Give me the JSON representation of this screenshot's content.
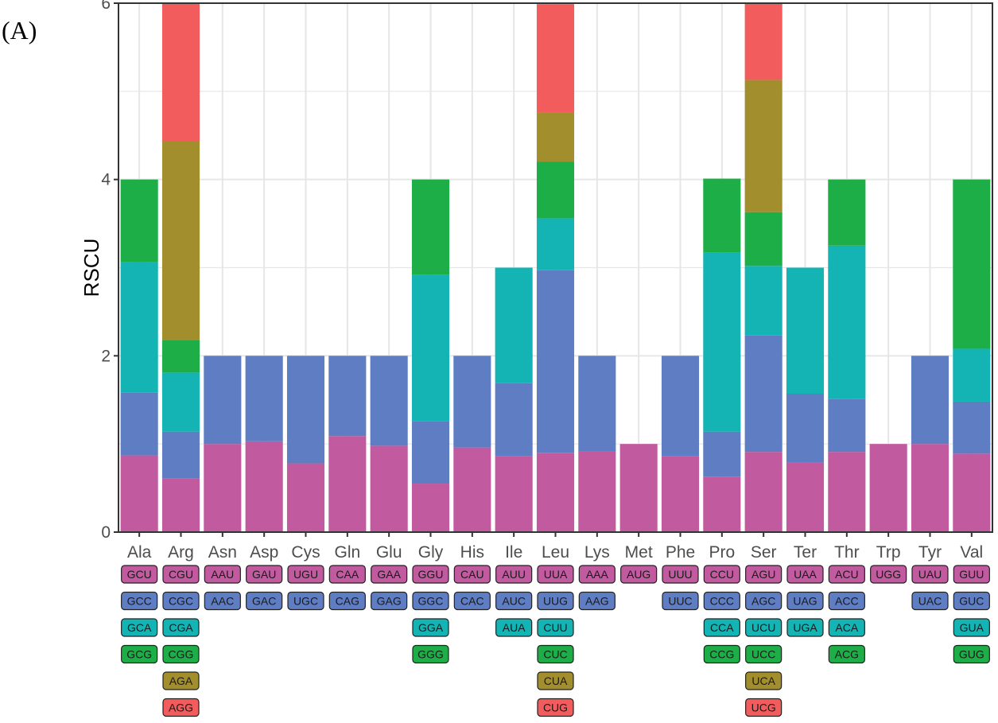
{
  "figure_label": "(A)",
  "colors": {
    "level1": "#C25AA0",
    "level2": "#5F7DC3",
    "level3": "#14B4B4",
    "level4": "#1EAE48",
    "level5": "#A38E2E",
    "level6": "#F25C5C",
    "panel_border": "#333333",
    "grid": "#e6e6e6"
  },
  "chart_data": {
    "type": "bar",
    "stacked": true,
    "ylabel": "RSCU",
    "xlabel": "",
    "ylim": [
      0,
      6
    ],
    "yticks": [
      0,
      2,
      4,
      6
    ],
    "grid": true,
    "categories": [
      "Ala",
      "Arg",
      "Asn",
      "Asp",
      "Cys",
      "Gln",
      "Glu",
      "Gly",
      "His",
      "Ile",
      "Leu",
      "Lys",
      "Met",
      "Phe",
      "Pro",
      "Ser",
      "Ter",
      "Thr",
      "Trp",
      "Tyr",
      "Val"
    ],
    "bars": [
      {
        "aa": "Ala",
        "codons": [
          {
            "codon": "GCU",
            "rscu": 0.87
          },
          {
            "codon": "GCC",
            "rscu": 0.71
          },
          {
            "codon": "GCA",
            "rscu": 1.48
          },
          {
            "codon": "GCG",
            "rscu": 0.94
          }
        ]
      },
      {
        "aa": "Arg",
        "codons": [
          {
            "codon": "CGU",
            "rscu": 0.61
          },
          {
            "codon": "CGC",
            "rscu": 0.53
          },
          {
            "codon": "CGA",
            "rscu": 0.67
          },
          {
            "codon": "CGG",
            "rscu": 0.37
          },
          {
            "codon": "AGA",
            "rscu": 2.25
          },
          {
            "codon": "AGG",
            "rscu": 1.57
          }
        ]
      },
      {
        "aa": "Asn",
        "codons": [
          {
            "codon": "AAU",
            "rscu": 1.0
          },
          {
            "codon": "AAC",
            "rscu": 1.0
          }
        ]
      },
      {
        "aa": "Asp",
        "codons": [
          {
            "codon": "GAU",
            "rscu": 1.03
          },
          {
            "codon": "GAC",
            "rscu": 0.97
          }
        ]
      },
      {
        "aa": "Cys",
        "codons": [
          {
            "codon": "UGU",
            "rscu": 0.78
          },
          {
            "codon": "UGC",
            "rscu": 1.22
          }
        ]
      },
      {
        "aa": "Gln",
        "codons": [
          {
            "codon": "CAA",
            "rscu": 1.09
          },
          {
            "codon": "CAG",
            "rscu": 0.91
          }
        ]
      },
      {
        "aa": "Glu",
        "codons": [
          {
            "codon": "GAA",
            "rscu": 0.98
          },
          {
            "codon": "GAG",
            "rscu": 1.02
          }
        ]
      },
      {
        "aa": "Gly",
        "codons": [
          {
            "codon": "GGU",
            "rscu": 0.55
          },
          {
            "codon": "GGC",
            "rscu": 0.71
          },
          {
            "codon": "GGA",
            "rscu": 1.66
          },
          {
            "codon": "GGG",
            "rscu": 1.08
          }
        ]
      },
      {
        "aa": "His",
        "codons": [
          {
            "codon": "CAU",
            "rscu": 0.96
          },
          {
            "codon": "CAC",
            "rscu": 1.04
          }
        ]
      },
      {
        "aa": "Ile",
        "codons": [
          {
            "codon": "AUU",
            "rscu": 0.86
          },
          {
            "codon": "AUC",
            "rscu": 0.83
          },
          {
            "codon": "AUA",
            "rscu": 1.31
          }
        ]
      },
      {
        "aa": "Leu",
        "codons": [
          {
            "codon": "UUA",
            "rscu": 0.9
          },
          {
            "codon": "UUG",
            "rscu": 2.07
          },
          {
            "codon": "CUU",
            "rscu": 0.59
          },
          {
            "codon": "CUC",
            "rscu": 0.64
          },
          {
            "codon": "CUA",
            "rscu": 0.56
          },
          {
            "codon": "CUG",
            "rscu": 1.23
          }
        ]
      },
      {
        "aa": "Lys",
        "codons": [
          {
            "codon": "AAA",
            "rscu": 0.92
          },
          {
            "codon": "AAG",
            "rscu": 1.08
          }
        ]
      },
      {
        "aa": "Met",
        "codons": [
          {
            "codon": "AUG",
            "rscu": 1.0
          }
        ]
      },
      {
        "aa": "Phe",
        "codons": [
          {
            "codon": "UUU",
            "rscu": 0.86
          },
          {
            "codon": "UUC",
            "rscu": 1.14
          }
        ]
      },
      {
        "aa": "Pro",
        "codons": [
          {
            "codon": "CCU",
            "rscu": 0.63
          },
          {
            "codon": "CCC",
            "rscu": 0.51
          },
          {
            "codon": "CCA",
            "rscu": 2.03
          },
          {
            "codon": "CCG",
            "rscu": 0.84
          }
        ]
      },
      {
        "aa": "Ser",
        "codons": [
          {
            "codon": "AGU",
            "rscu": 0.91
          },
          {
            "codon": "AGC",
            "rscu": 1.32
          },
          {
            "codon": "UCU",
            "rscu": 0.79
          },
          {
            "codon": "UCC",
            "rscu": 0.61
          },
          {
            "codon": "UCA",
            "rscu": 1.5
          },
          {
            "codon": "UCG",
            "rscu": 0.87
          }
        ]
      },
      {
        "aa": "Ter",
        "codons": [
          {
            "codon": "UAA",
            "rscu": 0.79
          },
          {
            "codon": "UAG",
            "rscu": 0.78
          },
          {
            "codon": "UGA",
            "rscu": 1.43
          }
        ]
      },
      {
        "aa": "Thr",
        "codons": [
          {
            "codon": "ACU",
            "rscu": 0.91
          },
          {
            "codon": "ACC",
            "rscu": 0.6
          },
          {
            "codon": "ACA",
            "rscu": 1.74
          },
          {
            "codon": "ACG",
            "rscu": 0.75
          }
        ]
      },
      {
        "aa": "Trp",
        "codons": [
          {
            "codon": "UGG",
            "rscu": 1.0
          }
        ]
      },
      {
        "aa": "Tyr",
        "codons": [
          {
            "codon": "UAU",
            "rscu": 1.0
          },
          {
            "codon": "UAC",
            "rscu": 1.0
          }
        ]
      },
      {
        "aa": "Val",
        "codons": [
          {
            "codon": "GUU",
            "rscu": 0.89
          },
          {
            "codon": "GUC",
            "rscu": 0.59
          },
          {
            "codon": "GUA",
            "rscu": 0.6
          },
          {
            "codon": "GUG",
            "rscu": 1.92
          }
        ]
      }
    ]
  }
}
